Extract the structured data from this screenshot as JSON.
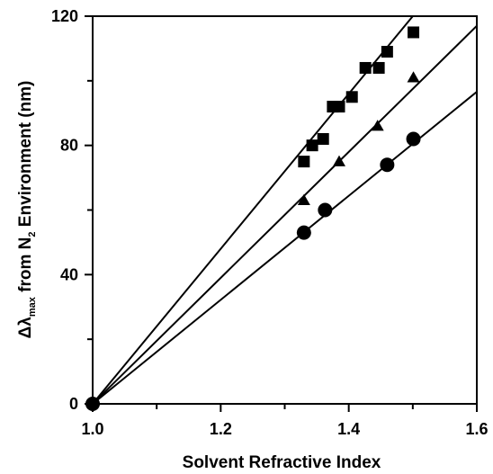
{
  "chart_data": {
    "type": "scatter",
    "xlabel": "Solvent Refractive Index",
    "ylabel": {
      "prefix": "Δλ",
      "subscript": "max",
      "middle": " from N",
      "subscript2": "2",
      "suffix": " Environment (nm)"
    },
    "xlim": [
      1.0,
      1.6
    ],
    "ylim": [
      0,
      120
    ],
    "x_ticks_major": [
      1.0,
      1.2,
      1.4,
      1.6
    ],
    "x_tick_labels": [
      "1.0",
      "1.2",
      "1.4",
      "1.6"
    ],
    "y_ticks_major": [
      0,
      40,
      80,
      120
    ],
    "y_tick_labels": [
      "0",
      "40",
      "80",
      "120"
    ],
    "grid": false,
    "legend": "none",
    "series": [
      {
        "marker": "square",
        "color": "#000000",
        "points": [
          [
            1.33,
            75
          ],
          [
            1.343,
            80
          ],
          [
            1.36,
            82
          ],
          [
            1.375,
            92
          ],
          [
            1.385,
            92
          ],
          [
            1.405,
            95
          ],
          [
            1.426,
            104
          ],
          [
            1.447,
            104
          ],
          [
            1.46,
            109
          ],
          [
            1.501,
            115
          ]
        ],
        "fit": {
          "slope": 240,
          "intercept": -240
        }
      },
      {
        "marker": "triangle",
        "color": "#000000",
        "points": [
          [
            1.33,
            63
          ],
          [
            1.385,
            75
          ],
          [
            1.445,
            86
          ],
          [
            1.501,
            101
          ]
        ],
        "fit": {
          "slope": 195,
          "intercept": -195
        }
      },
      {
        "marker": "circle",
        "color": "#000000",
        "points": [
          [
            1.0,
            0
          ],
          [
            1.33,
            53
          ],
          [
            1.363,
            60
          ],
          [
            1.46,
            74
          ],
          [
            1.501,
            82
          ]
        ],
        "fit": {
          "slope": 161,
          "intercept": -161
        }
      }
    ]
  }
}
